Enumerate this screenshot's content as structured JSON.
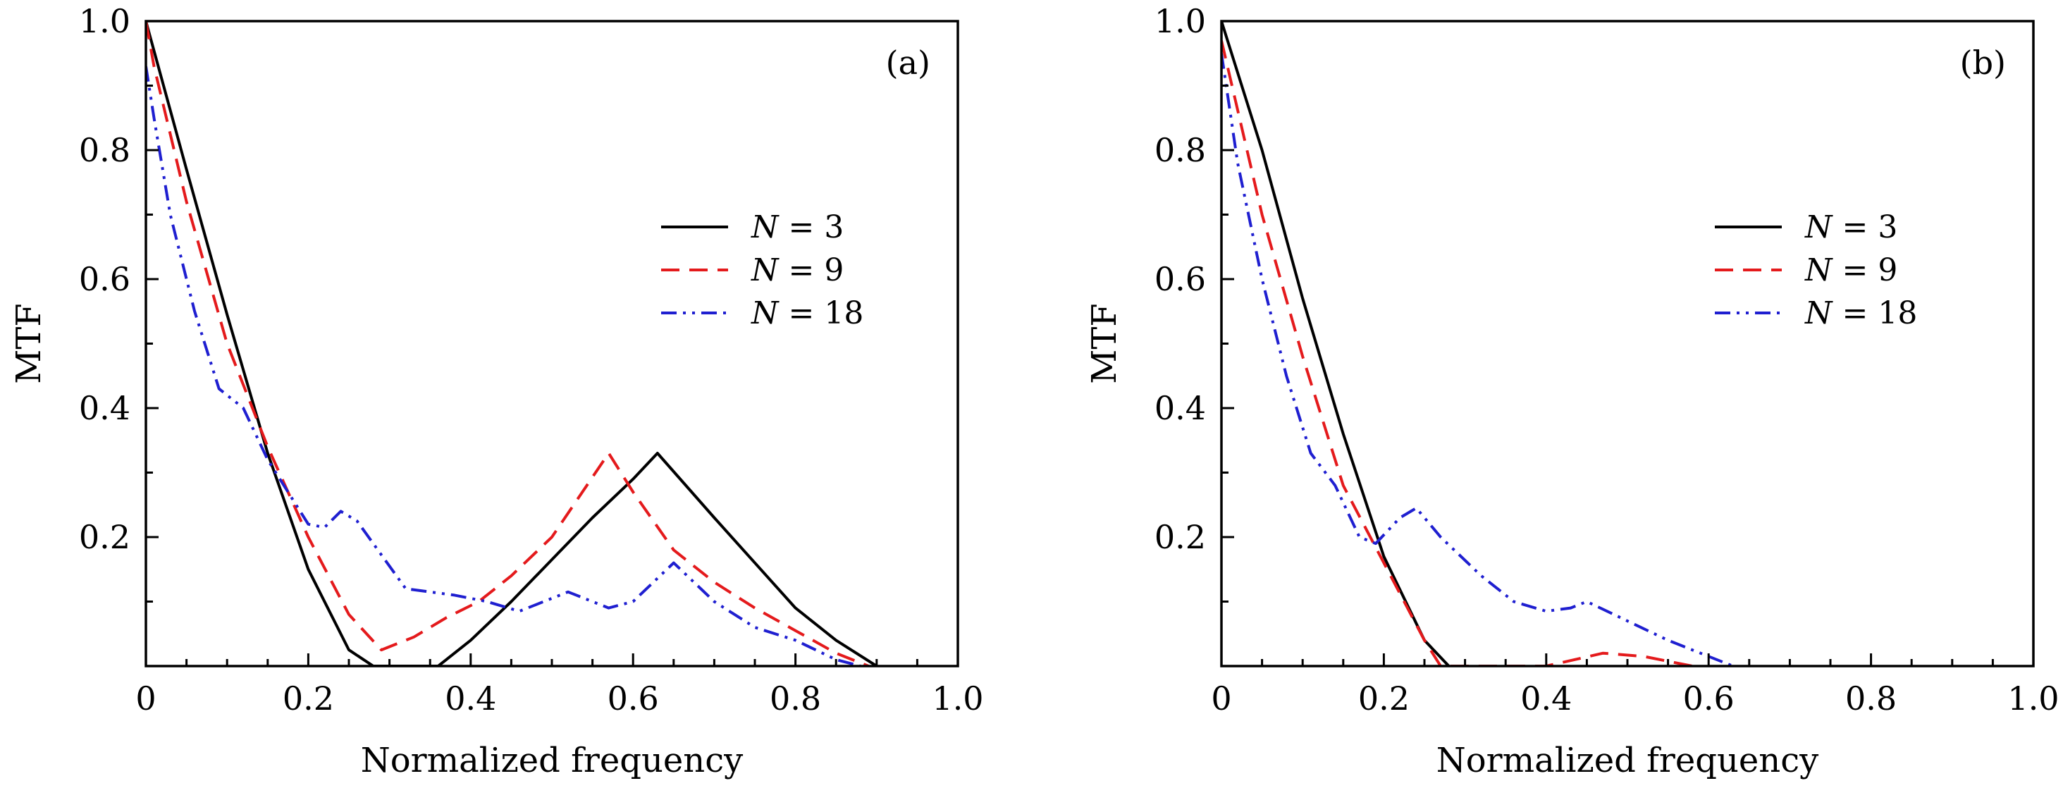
{
  "chart_data": [
    {
      "type": "line",
      "panel_label": "(a)",
      "xlabel": "Normalized frequency",
      "ylabel": "MTF",
      "xlim": [
        0,
        1.0
      ],
      "ylim": [
        0,
        1.0
      ],
      "xticks": [
        "0",
        "0.2",
        "0.4",
        "0.6",
        "0.8",
        "1.0"
      ],
      "yticks": [
        "0.2",
        "0.4",
        "0.6",
        "0.8",
        "1.0"
      ],
      "grid": false,
      "legend_position": "right",
      "series": [
        {
          "name_prefix": "N",
          "name_value": "3",
          "color": "#000000",
          "dash": "solid",
          "points": [
            [
              0,
              1.0
            ],
            [
              0.05,
              0.77
            ],
            [
              0.1,
              0.545
            ],
            [
              0.15,
              0.33
            ],
            [
              0.2,
              0.15
            ],
            [
              0.25,
              0.025
            ],
            [
              0.28,
              0.0
            ],
            [
              0.36,
              0.0
            ],
            [
              0.4,
              0.04
            ],
            [
              0.45,
              0.1
            ],
            [
              0.5,
              0.165
            ],
            [
              0.55,
              0.23
            ],
            [
              0.6,
              0.29
            ],
            [
              0.63,
              0.33
            ],
            [
              0.7,
              0.23
            ],
            [
              0.75,
              0.16
            ],
            [
              0.8,
              0.09
            ],
            [
              0.85,
              0.04
            ],
            [
              0.9,
              0.0
            ]
          ]
        },
        {
          "name_prefix": "N",
          "name_value": "9",
          "color": "#e41a1c",
          "dash": "dashed",
          "points": [
            [
              0,
              1.0
            ],
            [
              0.01,
              0.93
            ],
            [
              0.05,
              0.72
            ],
            [
              0.1,
              0.5
            ],
            [
              0.15,
              0.34
            ],
            [
              0.2,
              0.2
            ],
            [
              0.25,
              0.08
            ],
            [
              0.29,
              0.025
            ],
            [
              0.33,
              0.045
            ],
            [
              0.37,
              0.075
            ],
            [
              0.41,
              0.1
            ],
            [
              0.45,
              0.14
            ],
            [
              0.5,
              0.2
            ],
            [
              0.57,
              0.33
            ],
            [
              0.6,
              0.27
            ],
            [
              0.65,
              0.18
            ],
            [
              0.7,
              0.13
            ],
            [
              0.75,
              0.09
            ],
            [
              0.8,
              0.055
            ],
            [
              0.85,
              0.02
            ],
            [
              0.89,
              0.0
            ]
          ]
        },
        {
          "name_prefix": "N",
          "name_value": "18",
          "color": "#1f1fd0",
          "dash": "dashdotdot",
          "points": [
            [
              0,
              0.93
            ],
            [
              0.01,
              0.85
            ],
            [
              0.03,
              0.7
            ],
            [
              0.06,
              0.55
            ],
            [
              0.09,
              0.43
            ],
            [
              0.12,
              0.4
            ],
            [
              0.15,
              0.32
            ],
            [
              0.2,
              0.22
            ],
            [
              0.22,
              0.215
            ],
            [
              0.24,
              0.24
            ],
            [
              0.26,
              0.225
            ],
            [
              0.32,
              0.12
            ],
            [
              0.35,
              0.115
            ],
            [
              0.38,
              0.11
            ],
            [
              0.42,
              0.1
            ],
            [
              0.46,
              0.085
            ],
            [
              0.52,
              0.115
            ],
            [
              0.57,
              0.09
            ],
            [
              0.6,
              0.1
            ],
            [
              0.65,
              0.16
            ],
            [
              0.7,
              0.1
            ],
            [
              0.75,
              0.06
            ],
            [
              0.8,
              0.04
            ],
            [
              0.85,
              0.01
            ],
            [
              0.88,
              0.0
            ]
          ]
        }
      ]
    },
    {
      "type": "line",
      "panel_label": "(b)",
      "xlabel": "Normalized frequency",
      "ylabel": "MTF",
      "xlim": [
        0,
        1.0
      ],
      "ylim": [
        0,
        1.0
      ],
      "xticks": [
        "0",
        "0.2",
        "0.4",
        "0.6",
        "0.8",
        "1.0"
      ],
      "yticks": [
        "0.2",
        "0.4",
        "0.6",
        "0.8",
        "1.0"
      ],
      "grid": false,
      "legend_position": "right",
      "series": [
        {
          "name_prefix": "N",
          "name_value": "3",
          "color": "#000000",
          "dash": "solid",
          "points": [
            [
              0,
              1.0
            ],
            [
              0.05,
              0.8
            ],
            [
              0.1,
              0.57
            ],
            [
              0.15,
              0.36
            ],
            [
              0.2,
              0.17
            ],
            [
              0.25,
              0.04
            ],
            [
              0.28,
              0.0
            ]
          ]
        },
        {
          "name_prefix": "N",
          "name_value": "9",
          "color": "#e41a1c",
          "dash": "dashed",
          "points": [
            [
              0,
              0.97
            ],
            [
              0.05,
              0.7
            ],
            [
              0.1,
              0.48
            ],
            [
              0.15,
              0.28
            ],
            [
              0.2,
              0.16
            ],
            [
              0.25,
              0.04
            ],
            [
              0.27,
              0.0
            ],
            [
              0.4,
              0.0
            ],
            [
              0.47,
              0.02
            ],
            [
              0.52,
              0.015
            ],
            [
              0.58,
              0.0
            ]
          ]
        },
        {
          "name_prefix": "N",
          "name_value": "18",
          "color": "#1f1fd0",
          "dash": "dashdotdot",
          "points": [
            [
              0,
              0.95
            ],
            [
              0.02,
              0.78
            ],
            [
              0.05,
              0.6
            ],
            [
              0.08,
              0.45
            ],
            [
              0.11,
              0.33
            ],
            [
              0.14,
              0.28
            ],
            [
              0.17,
              0.2
            ],
            [
              0.19,
              0.19
            ],
            [
              0.22,
              0.23
            ],
            [
              0.24,
              0.245
            ],
            [
              0.27,
              0.2
            ],
            [
              0.32,
              0.14
            ],
            [
              0.36,
              0.1
            ],
            [
              0.4,
              0.085
            ],
            [
              0.43,
              0.09
            ],
            [
              0.45,
              0.1
            ],
            [
              0.5,
              0.07
            ],
            [
              0.55,
              0.04
            ],
            [
              0.6,
              0.015
            ],
            [
              0.63,
              0.0
            ]
          ]
        }
      ]
    }
  ]
}
